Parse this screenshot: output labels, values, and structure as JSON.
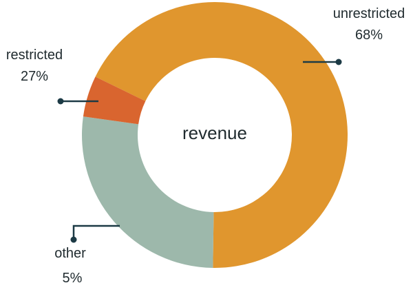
{
  "chart_data": {
    "type": "pie",
    "title": "revenue",
    "categories": [
      "unrestricted",
      "restricted",
      "other"
    ],
    "values": [
      68,
      27,
      5
    ],
    "value_labels": [
      "68%",
      "27%",
      "5%"
    ],
    "colors": [
      "#e0962e",
      "#9db8ab",
      "#d9652f"
    ],
    "leader_color": "#1c3a45",
    "legend": "none"
  }
}
